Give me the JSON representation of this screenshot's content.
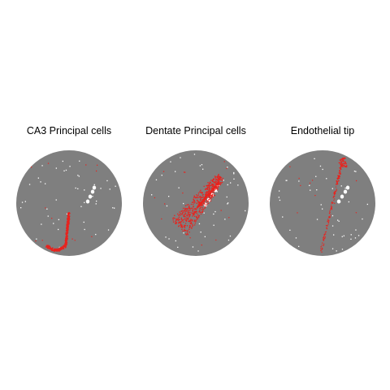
{
  "chart_data": [
    {
      "type": "scatter",
      "title": "CA3 Principal cells",
      "background_color": "#7f7f7f",
      "hole_color": "#ffffff",
      "highlight_color": "#e8231e",
      "highlight_shape": "arc"
    },
    {
      "type": "scatter",
      "title": "Dentate Principal cells",
      "background_color": "#7f7f7f",
      "hole_color": "#ffffff",
      "highlight_color": "#e8231e",
      "highlight_shape": "band"
    },
    {
      "type": "scatter",
      "title": "Endothelial tip",
      "background_color": "#7f7f7f",
      "hole_color": "#ffffff",
      "highlight_color": "#e8231e",
      "highlight_shape": "vessel"
    }
  ]
}
